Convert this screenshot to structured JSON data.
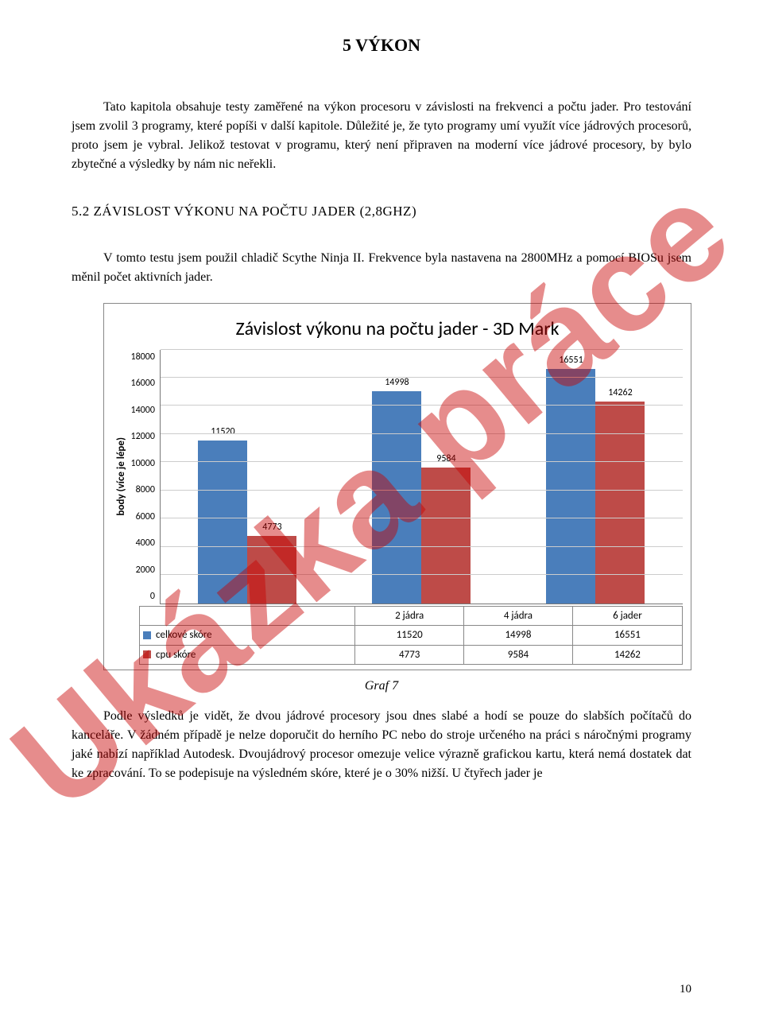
{
  "watermark": "Ukázka práce",
  "chapter_title": "5 VÝKON",
  "para1": "Tato kapitola obsahuje testy zaměřené na výkon procesoru v závislosti na frekvenci a počtu jader. Pro testování jsem zvolil 3 programy, které popíši v další kapitole. Důležité je, že tyto programy umí využít více jádrových procesorů, proto jsem je vybral. Jelikož testovat v programu, který není připraven na moderní více jádrové procesory, by bylo zbytečné a výsledky by nám nic neřekli.",
  "section_title": "5.2 ZÁVISLOST VÝKONU NA POČTU JADER (2,8GHZ)",
  "para2": "V tomto testu jsem použil chladič Scythe Ninja II. Frekvence byla nastavena na 2800MHz a pomocí BIOSu jsem měnil počet aktivních jader.",
  "chart": {
    "title": "Závislost výkonu na počtu jader - 3D Mark",
    "ylabel": "body (více je lépe)",
    "ymax": 18000,
    "ytick_step": 2000,
    "yticks": [
      "18000",
      "16000",
      "14000",
      "12000",
      "10000",
      "8000",
      "6000",
      "4000",
      "2000",
      "0"
    ],
    "categories": [
      "2 jádra",
      "4 jádra",
      "6 jader"
    ],
    "series": [
      {
        "name": "celkové skóre",
        "color": "#4a7ebb",
        "values": [
          11520,
          14998,
          16551
        ]
      },
      {
        "name": "cpu skóre",
        "color": "#be4b48",
        "values": [
          4773,
          9584,
          14262
        ]
      }
    ]
  },
  "caption": "Graf 7",
  "para3": "Podle výsledků je vidět, že dvou jádrové procesory jsou dnes slabé a hodí se pouze do slabších počítačů do kanceláře. V žádném případě je nelze doporučit do herního PC nebo do stroje určeného na práci s náročnými programy jaké nabízí například Autodesk. Dvoujádrový procesor omezuje velice výrazně grafickou kartu, která nemá dostatek dat ke zpracování. To se podepisuje na výsledném skóre, které je o 30% nižší. U čtyřech jader je",
  "page_number": "10"
}
